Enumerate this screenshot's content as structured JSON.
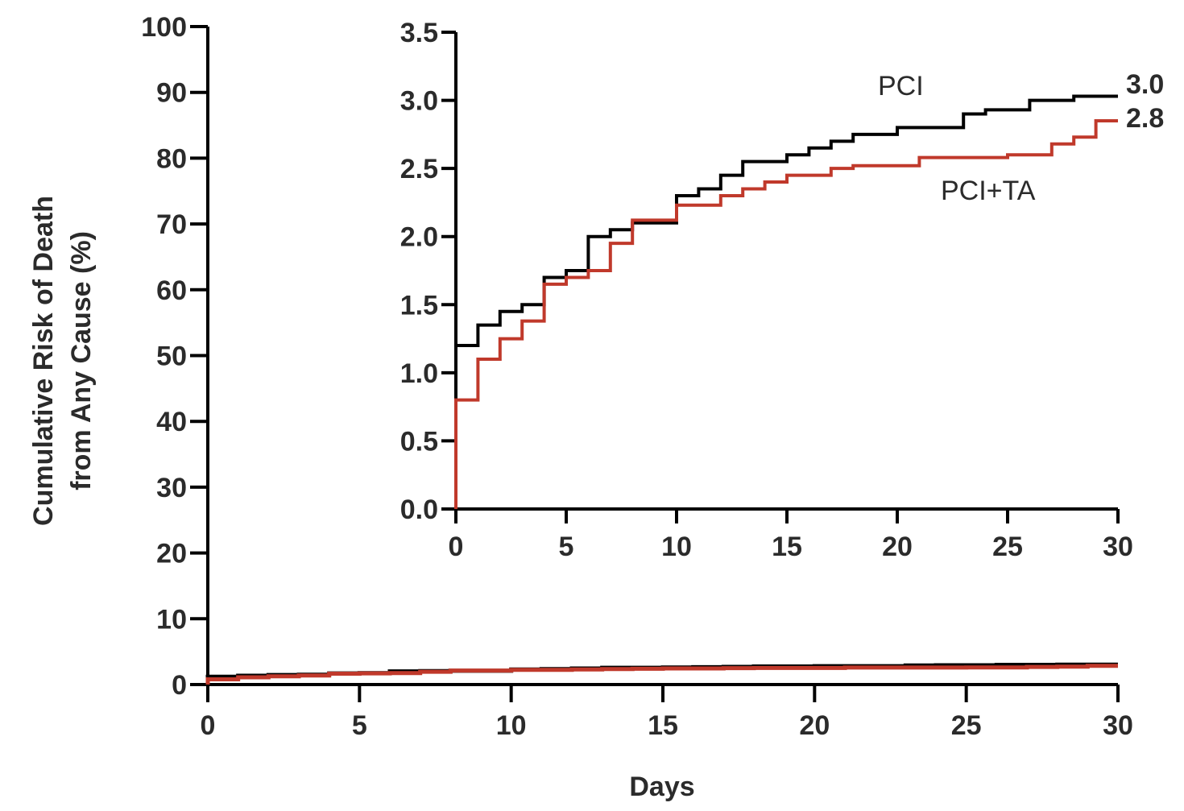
{
  "chart_data": [
    {
      "type": "line",
      "subtype": "kaplan-meier-step",
      "xlabel": "Days",
      "ylabel_lines": [
        "Cumulative Risk of Death",
        "from Any Cause (%)"
      ],
      "xlim": [
        0,
        30
      ],
      "ylim": [
        0,
        100
      ],
      "x_ticks": [
        "0",
        "5",
        "10",
        "15",
        "20",
        "25",
        "30"
      ],
      "y_ticks": [
        "0",
        "10",
        "20",
        "30",
        "40",
        "50",
        "60",
        "70",
        "80",
        "90",
        "100"
      ],
      "grid": false,
      "series": [
        {
          "color": "#000000",
          "steps": [
            [
              0,
              1.2
            ],
            [
              1,
              1.35
            ],
            [
              2,
              1.45
            ],
            [
              3,
              1.5
            ],
            [
              4,
              1.7
            ],
            [
              5,
              1.75
            ],
            [
              6,
              2.0
            ],
            [
              7,
              2.05
            ],
            [
              8,
              2.1
            ],
            [
              10,
              2.3
            ],
            [
              11,
              2.35
            ],
            [
              12,
              2.45
            ],
            [
              13,
              2.55
            ],
            [
              15,
              2.6
            ],
            [
              16,
              2.65
            ],
            [
              17,
              2.7
            ],
            [
              18,
              2.75
            ],
            [
              20,
              2.8
            ],
            [
              23,
              2.9
            ],
            [
              24,
              2.93
            ],
            [
              26,
              3.0
            ],
            [
              28,
              3.03
            ],
            [
              30,
              3.03
            ]
          ]
        },
        {
          "color": "#c0392b",
          "steps": [
            [
              0,
              0.8
            ],
            [
              1,
              1.1
            ],
            [
              2,
              1.25
            ],
            [
              3,
              1.38
            ],
            [
              4,
              1.65
            ],
            [
              5,
              1.7
            ],
            [
              6,
              1.75
            ],
            [
              7,
              1.95
            ],
            [
              8,
              2.12
            ],
            [
              10,
              2.23
            ],
            [
              12,
              2.3
            ],
            [
              13,
              2.35
            ],
            [
              14,
              2.4
            ],
            [
              15,
              2.45
            ],
            [
              17,
              2.5
            ],
            [
              18,
              2.52
            ],
            [
              21,
              2.58
            ],
            [
              25,
              2.6
            ],
            [
              27,
              2.68
            ],
            [
              28,
              2.73
            ],
            [
              29,
              2.85
            ],
            [
              30,
              2.85
            ]
          ]
        }
      ]
    },
    {
      "type": "line",
      "subtype": "kaplan-meier-step",
      "role": "inset",
      "xlim": [
        0,
        30
      ],
      "ylim": [
        0,
        3.5
      ],
      "x_ticks": [
        "0",
        "5",
        "10",
        "15",
        "20",
        "25",
        "30"
      ],
      "y_ticks": [
        "0.0",
        "0.5",
        "1.0",
        "1.5",
        "2.0",
        "2.5",
        "3.0",
        "3.5"
      ],
      "grid": false,
      "series": [
        {
          "name": "PCI",
          "end_label": "3.0",
          "color": "#000000",
          "steps": [
            [
              0,
              1.2
            ],
            [
              1,
              1.35
            ],
            [
              2,
              1.45
            ],
            [
              3,
              1.5
            ],
            [
              4,
              1.7
            ],
            [
              5,
              1.75
            ],
            [
              6,
              2.0
            ],
            [
              7,
              2.05
            ],
            [
              8,
              2.1
            ],
            [
              10,
              2.3
            ],
            [
              11,
              2.35
            ],
            [
              12,
              2.45
            ],
            [
              13,
              2.55
            ],
            [
              15,
              2.6
            ],
            [
              16,
              2.65
            ],
            [
              17,
              2.7
            ],
            [
              18,
              2.75
            ],
            [
              20,
              2.8
            ],
            [
              23,
              2.9
            ],
            [
              24,
              2.93
            ],
            [
              26,
              3.0
            ],
            [
              28,
              3.03
            ],
            [
              30,
              3.03
            ]
          ]
        },
        {
          "name": "PCI+TA",
          "end_label": "2.8",
          "color": "#c0392b",
          "steps": [
            [
              0,
              0.8
            ],
            [
              1,
              1.1
            ],
            [
              2,
              1.25
            ],
            [
              3,
              1.38
            ],
            [
              4,
              1.65
            ],
            [
              5,
              1.7
            ],
            [
              6,
              1.75
            ],
            [
              7,
              1.95
            ],
            [
              8,
              2.12
            ],
            [
              10,
              2.23
            ],
            [
              12,
              2.3
            ],
            [
              13,
              2.35
            ],
            [
              14,
              2.4
            ],
            [
              15,
              2.45
            ],
            [
              17,
              2.5
            ],
            [
              18,
              2.52
            ],
            [
              21,
              2.58
            ],
            [
              25,
              2.6
            ],
            [
              27,
              2.68
            ],
            [
              28,
              2.73
            ],
            [
              29,
              2.85
            ],
            [
              30,
              2.85
            ]
          ]
        }
      ]
    }
  ]
}
